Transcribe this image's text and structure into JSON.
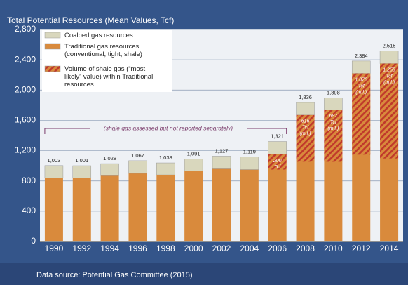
{
  "chart_data": {
    "type": "bar",
    "title": "Total Potential Resources (Mean Values, Tcf)",
    "source": "Data source: Potential Gas Committee (2015)",
    "annotation": "(shale gas assessed but not reported separately)",
    "categories": [
      "1990",
      "1992",
      "1994",
      "1996",
      "1998",
      "2000",
      "2002",
      "2004",
      "2006",
      "2008",
      "2010",
      "2012",
      "2014"
    ],
    "series": [
      {
        "name": "Traditional gas resources (conventional, tight, shale)",
        "color": "#d98a3c",
        "values": [
          840,
          840,
          870,
          900,
          880,
          930,
          960,
          950,
          1150,
          1670,
          1740,
          2220,
          2350
        ]
      },
      {
        "name": "Coalbed gas resources",
        "color": "#d9d7bd",
        "values": [
          163,
          161,
          158,
          167,
          158,
          161,
          167,
          169,
          171,
          166,
          158,
          164,
          165
        ]
      },
      {
        "name": "Volume of shale gas (“most likely” value) within Traditional resources",
        "color": "#c0392b",
        "values": [
          null,
          null,
          null,
          null,
          null,
          null,
          null,
          null,
          200,
          616,
          687,
          1073,
          1253
        ],
        "value_labels": [
          null,
          null,
          null,
          null,
          null,
          null,
          null,
          null,
          [
            "200",
            "Tcf"
          ],
          [
            "616",
            "Tcf",
            "(m.l.)"
          ],
          [
            "687",
            "Tcf",
            "(m.l.)"
          ],
          [
            "1,073",
            "Tcf",
            "(m.l.)"
          ],
          [
            "1,253",
            "Tcf",
            "(m.l.)"
          ]
        ]
      }
    ],
    "totals": {
      "values": [
        1003,
        1001,
        1028,
        1067,
        1038,
        1091,
        1127,
        1119,
        1321,
        1836,
        1898,
        2384,
        2515
      ],
      "value_labels": [
        "1,003",
        "1,001",
        "1,028",
        "1,067",
        "1,038",
        "1,091",
        "1,127",
        "1,119",
        "1,321",
        "1,836",
        "1,898",
        "2,384",
        "2,515"
      ]
    },
    "ylim": [
      0,
      2800
    ],
    "yticks": [
      0,
      400,
      800,
      {
        "value": 1200,
        "label": "1,200"
      },
      {
        "value": 1600,
        "label": "1,600"
      },
      {
        "value": 2000,
        "label": "2,000"
      },
      {
        "value": 2400,
        "label": "2,400"
      },
      {
        "value": 2800,
        "label": "2,800"
      }
    ],
    "grid": true
  }
}
